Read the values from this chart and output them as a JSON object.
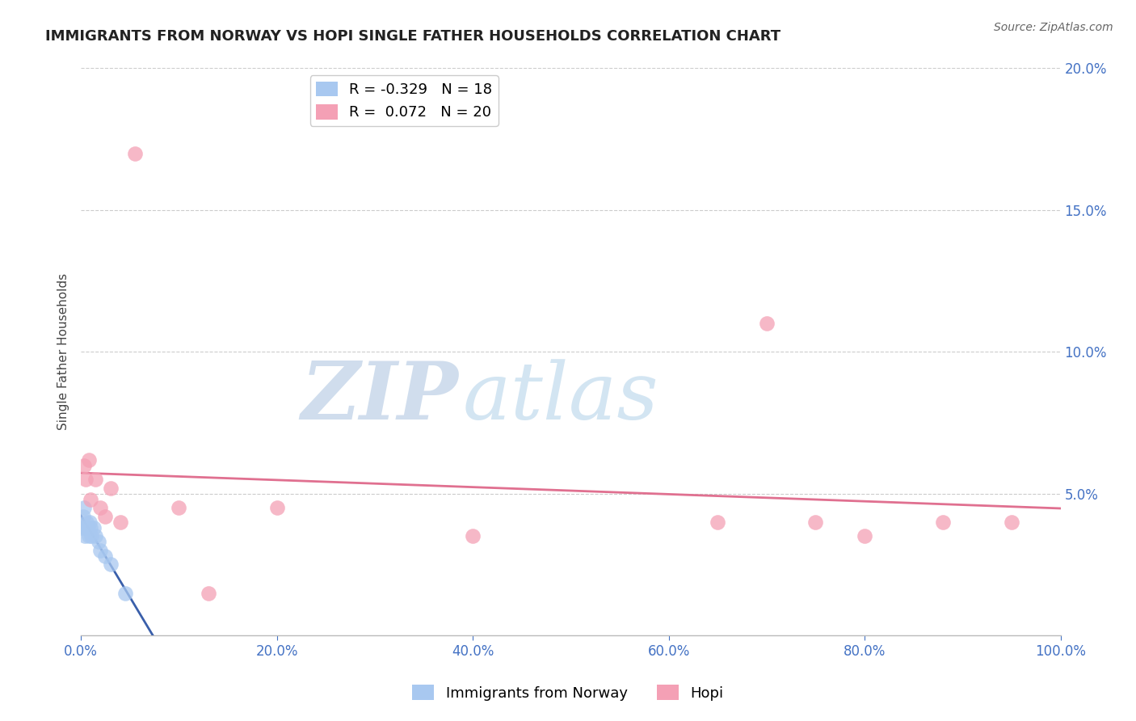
{
  "title": "IMMIGRANTS FROM NORWAY VS HOPI SINGLE FATHER HOUSEHOLDS CORRELATION CHART",
  "source_text": "Source: ZipAtlas.com",
  "ylabel": "Single Father Households",
  "legend_label_1": "Immigrants from Norway",
  "legend_label_2": "Hopi",
  "r1": -0.329,
  "n1": 18,
  "r2": 0.072,
  "n2": 20,
  "xlim": [
    0.0,
    100.0
  ],
  "ylim": [
    0.0,
    20.0
  ],
  "xticks": [
    0,
    20,
    40,
    60,
    80,
    100
  ],
  "yticks": [
    5,
    10,
    15,
    20
  ],
  "color_norway": "#a8c8f0",
  "color_hopi": "#f4a0b5",
  "color_norway_line": "#3a5faa",
  "color_hopi_line": "#e07090",
  "background_color": "#ffffff",
  "norway_x": [
    0.1,
    0.2,
    0.3,
    0.4,
    0.5,
    0.6,
    0.7,
    0.8,
    0.9,
    1.0,
    1.1,
    1.3,
    1.5,
    1.8,
    2.0,
    2.5,
    3.0,
    4.5
  ],
  "norway_y": [
    3.8,
    4.2,
    4.5,
    3.5,
    3.8,
    4.0,
    3.8,
    3.5,
    4.0,
    3.8,
    3.5,
    3.8,
    3.5,
    3.3,
    3.0,
    2.8,
    2.5,
    1.5
  ],
  "hopi_x": [
    0.3,
    0.5,
    0.8,
    1.0,
    1.5,
    2.0,
    2.5,
    3.0,
    4.0,
    5.5,
    10.0,
    13.0,
    20.0,
    40.0,
    65.0,
    70.0,
    75.0,
    80.0,
    88.0,
    95.0
  ],
  "hopi_y": [
    6.0,
    5.5,
    6.2,
    4.8,
    5.5,
    4.5,
    4.2,
    5.2,
    4.0,
    17.0,
    4.5,
    1.5,
    4.5,
    3.5,
    4.0,
    11.0,
    4.0,
    3.5,
    4.0,
    4.0
  ],
  "watermark_zip": "ZIP",
  "watermark_atlas": "atlas",
  "title_fontsize": 13,
  "axis_label_fontsize": 11,
  "tick_fontsize": 12,
  "legend_fontsize": 13,
  "source_fontsize": 10
}
